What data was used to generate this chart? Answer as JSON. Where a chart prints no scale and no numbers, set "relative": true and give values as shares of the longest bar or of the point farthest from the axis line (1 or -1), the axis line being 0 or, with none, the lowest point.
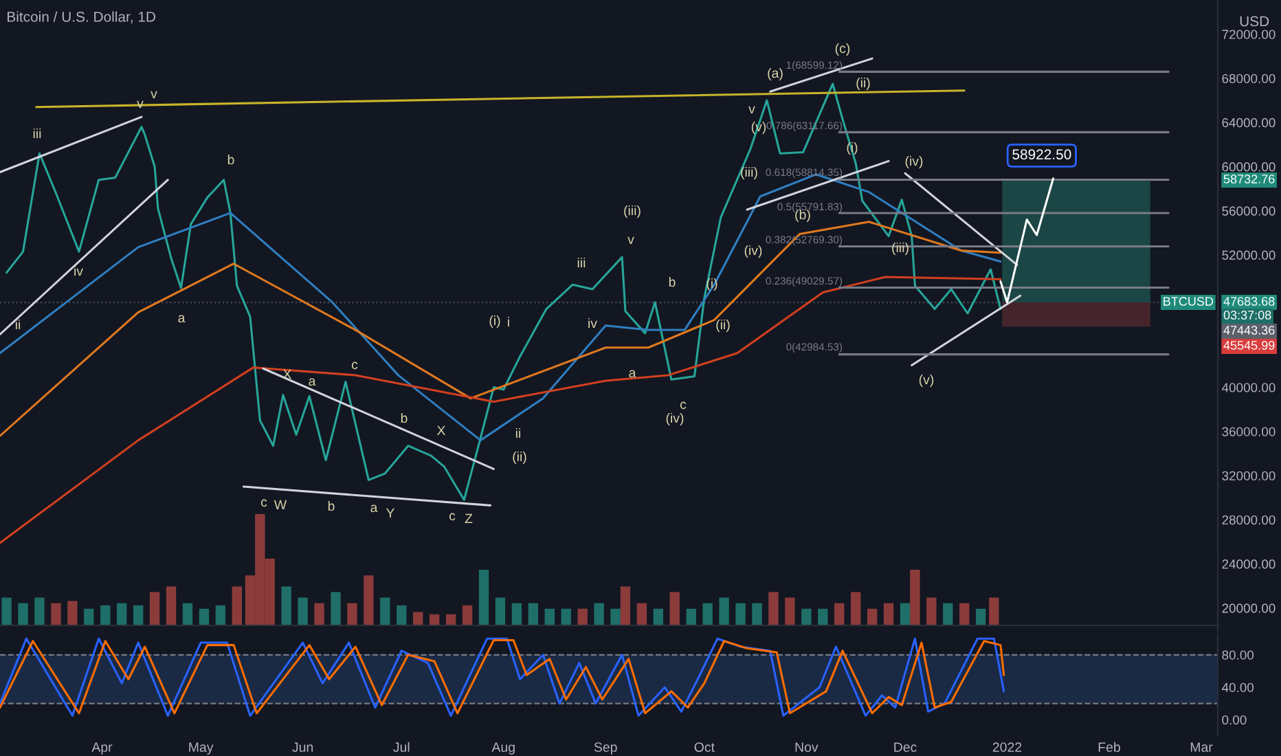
{
  "chart_data": [
    {
      "type": "line",
      "title": "Bitcoin / U.S. Dollar, 1D",
      "ylabel": "USD",
      "xlim": [
        "2021-03-01",
        "2022-03-06"
      ],
      "ylim": [
        17800,
        75100
      ],
      "yticks": [
        {
          "value": 20000,
          "label": "20000.00"
        },
        {
          "value": 24000,
          "label": "24000.00"
        },
        {
          "value": 28000,
          "label": "28000.00"
        },
        {
          "value": 32000,
          "label": "32000.00"
        },
        {
          "value": 36000,
          "label": "36000.00"
        },
        {
          "value": 40000,
          "label": "40000.00"
        },
        {
          "value": 52000,
          "label": "52000.00"
        },
        {
          "value": 56000,
          "label": "56000.00"
        },
        {
          "value": 60000,
          "label": "60000.00"
        },
        {
          "value": 64000,
          "label": "64000.00"
        },
        {
          "value": 68000,
          "label": "68000.00"
        },
        {
          "value": 72000,
          "label": "72000.00"
        }
      ],
      "tick_labels": "y",
      "grid": false,
      "legend": false,
      "series": [
        {
          "type": "bar",
          "color": "#1b4645",
          "x": [
            "2022-01-22"
          ],
          "base": [
            47700
          ],
          "values": [
            11000
          ]
        },
        {
          "type": "bar",
          "color": "#45242b",
          "x": [
            "2022-01-22"
          ],
          "base": [
            45500
          ],
          "values": [
            2200
          ]
        },
        {
          "type": "line",
          "color": "#26a69a",
          "x": [
            "2021-03-03",
            "2021-03-08",
            "2021-03-13",
            "2021-03-18",
            "2021-03-25",
            "2021-03-31",
            "2021-04-05",
            "2021-04-13",
            "2021-04-14",
            "2021-04-17",
            "2021-04-18",
            "2021-04-22",
            "2021-04-25",
            "2021-04-28",
            "2021-05-03",
            "2021-05-08",
            "2021-05-10",
            "2021-05-12",
            "2021-05-16",
            "2021-05-19",
            "2021-05-23",
            "2021-05-26",
            "2021-05-30",
            "2021-06-03",
            "2021-06-08",
            "2021-06-14",
            "2021-06-21",
            "2021-06-26",
            "2021-07-03",
            "2021-07-10",
            "2021-07-14",
            "2021-07-20",
            "2021-07-25",
            "2021-07-29",
            "2021-08-01",
            "2021-08-06",
            "2021-08-14",
            "2021-08-22",
            "2021-08-28",
            "2021-09-06",
            "2021-09-07",
            "2021-09-13",
            "2021-09-16",
            "2021-09-21",
            "2021-09-28",
            "2021-10-01",
            "2021-10-06",
            "2021-10-15",
            "2021-10-20",
            "2021-10-24",
            "2021-10-31",
            "2021-11-09",
            "2021-11-12",
            "2021-11-16",
            "2021-11-18",
            "2021-11-26",
            "2021-11-30",
            "2021-12-03",
            "2021-12-04",
            "2021-12-10",
            "2021-12-15",
            "2021-12-20",
            "2021-12-27",
            "2021-12-30"
          ],
          "values": [
            50400,
            52300,
            61200,
            57600,
            52300,
            58800,
            59000,
            63600,
            62900,
            60000,
            56200,
            51700,
            49000,
            54800,
            57200,
            58800,
            55800,
            49200,
            46400,
            37000,
            34700,
            39300,
            35700,
            39200,
            33400,
            40500,
            31600,
            32200,
            34700,
            33800,
            32800,
            29800,
            35400,
            40000,
            39800,
            42800,
            47100,
            49300,
            48900,
            51800,
            46900,
            44900,
            47700,
            40700,
            41000,
            48100,
            55400,
            61600,
            66000,
            61200,
            61300,
            67500,
            64300,
            60300,
            56900,
            53700,
            57000,
            53700,
            49200,
            47100,
            48900,
            46700,
            50700,
            47100
          ]
        },
        {
          "type": "line",
          "color": "#2f7fc1",
          "x": [
            "2021-03-01",
            "2021-04-12",
            "2021-05-10",
            "2021-06-10",
            "2021-06-30",
            "2021-07-25",
            "2021-08-13",
            "2021-09-01",
            "2021-09-14",
            "2021-09-25",
            "2021-10-04",
            "2021-10-18",
            "2021-11-04",
            "2021-11-20",
            "2021-12-18",
            "2021-12-30"
          ],
          "values": [
            43100,
            52700,
            55800,
            47700,
            41100,
            35200,
            39000,
            45600,
            45200,
            45200,
            49300,
            57300,
            59300,
            57700,
            52400,
            51400
          ]
        },
        {
          "type": "line",
          "color": "#e0791f",
          "x": [
            "2021-03-01",
            "2021-04-12",
            "2021-05-11",
            "2021-06-17",
            "2021-07-22",
            "2021-09-01",
            "2021-09-14",
            "2021-10-04",
            "2021-10-30",
            "2021-11-20",
            "2021-12-18",
            "2021-12-30"
          ],
          "values": [
            35600,
            46800,
            51200,
            45200,
            39000,
            43600,
            43600,
            46100,
            53900,
            55000,
            52400,
            52200
          ]
        },
        {
          "type": "line",
          "color": "#d2401f",
          "x": [
            "2021-03-01",
            "2021-04-12",
            "2021-05-17",
            "2021-06-17",
            "2021-07-29",
            "2021-09-01",
            "2021-09-20",
            "2021-10-11",
            "2021-11-06",
            "2021-11-25",
            "2021-12-30"
          ],
          "values": [
            25900,
            35200,
            41800,
            41100,
            38700,
            40600,
            41100,
            43100,
            48600,
            50000,
            49800
          ]
        },
        {
          "type": "line",
          "color": "#c8b52a",
          "x": [
            "2021-03-12",
            "2021-12-19"
          ],
          "values": [
            65400,
            66900
          ]
        },
        {
          "type": "line",
          "color": "#d1d4dc",
          "x": [
            "2021-03-01",
            "2021-04-13"
          ],
          "values": [
            59500,
            64500
          ]
        },
        {
          "type": "line",
          "color": "#d1d4dc",
          "x": [
            "2021-03-01",
            "2021-04-21"
          ],
          "values": [
            44800,
            58800
          ]
        },
        {
          "type": "line",
          "color": "#d1d4dc",
          "x": [
            "2021-05-20",
            "2021-07-29"
          ],
          "values": [
            41700,
            32600
          ]
        },
        {
          "type": "line",
          "color": "#d1d4dc",
          "x": [
            "2021-05-14",
            "2021-07-28"
          ],
          "values": [
            31000,
            29300
          ]
        },
        {
          "type": "line",
          "color": "#d1d4dc",
          "x": [
            "2021-10-21",
            "2021-11-21"
          ],
          "values": [
            66800,
            69800
          ]
        },
        {
          "type": "line",
          "color": "#d1d4dc",
          "x": [
            "2021-10-14",
            "2021-11-26"
          ],
          "values": [
            56100,
            60500
          ]
        },
        {
          "type": "line",
          "color": "#d1d4dc",
          "x": [
            "2021-12-01",
            "2022-01-04"
          ],
          "values": [
            59400,
            51100
          ]
        },
        {
          "type": "line",
          "color": "#d1d4dc",
          "x": [
            "2021-12-03",
            "2022-01-05"
          ],
          "values": [
            42000,
            48300
          ]
        },
        {
          "type": "line",
          "color": "#787b86",
          "x": [
            "2021-11-11",
            "2022-02-19"
          ],
          "values": [
            68599.12,
            68599.12
          ]
        },
        {
          "type": "line",
          "color": "#787b86",
          "x": [
            "2021-11-11",
            "2022-02-19"
          ],
          "values": [
            63117.66,
            63117.66
          ]
        },
        {
          "type": "line",
          "color": "#787b86",
          "x": [
            "2021-11-11",
            "2022-02-19"
          ],
          "values": [
            58814.35,
            58814.35
          ]
        },
        {
          "type": "line",
          "color": "#787b86",
          "x": [
            "2021-11-11",
            "2022-02-19"
          ],
          "values": [
            55791.83,
            55791.83
          ]
        },
        {
          "type": "line",
          "color": "#787b86",
          "x": [
            "2021-11-11",
            "2022-02-19"
          ],
          "values": [
            52769.3,
            52769.3
          ]
        },
        {
          "type": "line",
          "color": "#787b86",
          "x": [
            "2021-11-11",
            "2022-02-19"
          ],
          "values": [
            49029.57,
            49029.57
          ]
        },
        {
          "type": "line",
          "color": "#787b86",
          "x": [
            "2021-11-11",
            "2022-02-19"
          ],
          "values": [
            42984.53,
            42984.53
          ]
        },
        {
          "type": "line",
          "color": "#ffffff",
          "x": [
            "2021-12-30",
            "2022-01-01",
            "2022-01-07",
            "2022-01-10",
            "2022-01-15"
          ],
          "values": [
            49600,
            47700,
            55200,
            53800,
            58922.5
          ]
        }
      ],
      "ref_lines": [
        {
          "axis": "y",
          "value": 47683.68,
          "color": "#4a4e5a",
          "line_style": "dotted"
        }
      ],
      "annotations": [
        "iii",
        "v",
        "v",
        "iv",
        "ii",
        "b",
        "a",
        "c",
        "W",
        "X",
        "a",
        "c",
        "b",
        "a",
        "Y",
        "b",
        "X",
        "c",
        "Z",
        "(i)",
        "i",
        "ii",
        "(ii)",
        "(iii)",
        "iii",
        "iv",
        "v",
        "a",
        "b",
        "c",
        "(iv)",
        "(i)",
        "(ii)",
        "(iv)",
        "(iii)",
        "(v)",
        "v",
        "(a)",
        "(c)",
        "(b)",
        "(ii)",
        "(i)",
        "(iv)",
        "(iii)",
        "(v)",
        "1(68599.12)",
        "0.786(63117.66)",
        "0.618(58814.35)",
        "0.5(55791.83)",
        "0.382(52769.30)",
        "0.236(49029.57)",
        "0(42984.53)",
        {
          "text": "58922.50",
          "x": "2022-01-15",
          "y": 58922.5
        },
        "58732.76",
        "BTCUSD",
        "47683.68",
        "03:37:08",
        "47443.36",
        "45545.99"
      ]
    },
    {
      "type": "bar",
      "relative": true,
      "tick_labels": false,
      "xlim": [
        "2021-03-01",
        "2022-03-06"
      ],
      "x": [
        "2021-03-03",
        "2021-03-08",
        "2021-03-13",
        "2021-03-18",
        "2021-03-23",
        "2021-03-28",
        "2021-04-02",
        "2021-04-07",
        "2021-04-12",
        "2021-04-17",
        "2021-04-22",
        "2021-04-27",
        "2021-05-02",
        "2021-05-07",
        "2021-05-12",
        "2021-05-16",
        "2021-05-19",
        "2021-05-22",
        "2021-05-27",
        "2021-06-01",
        "2021-06-06",
        "2021-06-11",
        "2021-06-16",
        "2021-06-21",
        "2021-06-26",
        "2021-07-01",
        "2021-07-06",
        "2021-07-11",
        "2021-07-16",
        "2021-07-21",
        "2021-07-26",
        "2021-07-31",
        "2021-08-05",
        "2021-08-10",
        "2021-08-15",
        "2021-08-20",
        "2021-08-25",
        "2021-08-30",
        "2021-09-04",
        "2021-09-07",
        "2021-09-12",
        "2021-09-17",
        "2021-09-22",
        "2021-09-27",
        "2021-10-02",
        "2021-10-07",
        "2021-10-12",
        "2021-10-17",
        "2021-10-22",
        "2021-10-27",
        "2021-11-01",
        "2021-11-06",
        "2021-11-11",
        "2021-11-16",
        "2021-11-21",
        "2021-11-26",
        "2021-12-01",
        "2021-12-04",
        "2021-12-09",
        "2021-12-14",
        "2021-12-19",
        "2021-12-24",
        "2021-12-28"
      ],
      "values": [
        0.25,
        0.2,
        0.25,
        0.2,
        0.22,
        0.15,
        0.18,
        0.2,
        0.18,
        0.3,
        0.35,
        0.2,
        0.15,
        0.18,
        0.35,
        0.45,
        1.0,
        0.6,
        0.35,
        0.25,
        0.2,
        0.3,
        0.2,
        0.45,
        0.25,
        0.18,
        0.12,
        0.1,
        0.1,
        0.18,
        0.5,
        0.25,
        0.2,
        0.2,
        0.15,
        0.15,
        0.15,
        0.2,
        0.15,
        0.35,
        0.2,
        0.15,
        0.3,
        0.15,
        0.2,
        0.25,
        0.2,
        0.2,
        0.3,
        0.25,
        0.15,
        0.15,
        0.2,
        0.3,
        0.15,
        0.2,
        0.2,
        0.5,
        0.25,
        0.2,
        0.2,
        0.15,
        0.25
      ],
      "colors": [
        "#1f6f68",
        "#1f6f68",
        "#1f6f68",
        "#8c3b3b",
        "#8c3b3b",
        "#1f6f68",
        "#1f6f68",
        "#1f6f68",
        "#1f6f68",
        "#8c3b3b",
        "#8c3b3b",
        "#1f6f68",
        "#1f6f68",
        "#1f6f68",
        "#8c3b3b",
        "#8c3b3b",
        "#8c3b3b",
        "#8c3b3b",
        "#1f6f68",
        "#1f6f68",
        "#8c3b3b",
        "#1f6f68",
        "#8c3b3b",
        "#8c3b3b",
        "#1f6f68",
        "#1f6f68",
        "#8c3b3b",
        "#8c3b3b",
        "#8c3b3b",
        "#8c3b3b",
        "#1f6f68",
        "#1f6f68",
        "#1f6f68",
        "#1f6f68",
        "#1f6f68",
        "#1f6f68",
        "#8c3b3b",
        "#1f6f68",
        "#1f6f68",
        "#8c3b3b",
        "#8c3b3b",
        "#1f6f68",
        "#8c3b3b",
        "#1f6f68",
        "#1f6f68",
        "#1f6f68",
        "#1f6f68",
        "#1f6f68",
        "#8c3b3b",
        "#8c3b3b",
        "#1f6f68",
        "#1f6f68",
        "#8c3b3b",
        "#8c3b3b",
        "#8c3b3b",
        "#8c3b3b",
        "#1f6f68",
        "#8c3b3b",
        "#8c3b3b",
        "#1f6f68",
        "#8c3b3b",
        "#1f6f68",
        "#8c3b3b"
      ]
    },
    {
      "type": "line",
      "xlim": [
        "2021-03-01",
        "2022-03-06"
      ],
      "ylim": [
        -19.3,
        104.4
      ],
      "xticks": [
        {
          "value": "2021-04-01",
          "label": "Apr"
        },
        {
          "value": "2021-05-01",
          "label": "May"
        },
        {
          "value": "2021-06-01",
          "label": "Jun"
        },
        {
          "value": "2021-07-01",
          "label": "Jul"
        },
        {
          "value": "2021-08-01",
          "label": "Aug"
        },
        {
          "value": "2021-09-01",
          "label": "Sep"
        },
        {
          "value": "2021-10-01",
          "label": "Oct"
        },
        {
          "value": "2021-11-01",
          "label": "Nov"
        },
        {
          "value": "2021-12-01",
          "label": "Dec"
        },
        {
          "value": "2022-01-01",
          "label": "2022"
        },
        {
          "value": "2022-02-01",
          "label": "Feb"
        },
        {
          "value": "2022-03-01",
          "label": "Mar"
        }
      ],
      "yticks": [
        {
          "value": 0,
          "label": "0.00"
        },
        {
          "value": 40,
          "label": "40.00"
        },
        {
          "value": 80,
          "label": "80.00"
        }
      ],
      "grid": false,
      "legend": false,
      "series": [
        {
          "color": "#2962ff",
          "x": [
            "2021-03-01",
            "2021-03-09",
            "2021-03-23",
            "2021-03-31",
            "2021-04-07",
            "2021-04-12",
            "2021-04-21",
            "2021-05-01",
            "2021-05-09",
            "2021-05-16",
            "2021-06-01",
            "2021-06-07",
            "2021-06-15",
            "2021-06-23",
            "2021-07-01",
            "2021-07-09",
            "2021-07-16",
            "2021-07-27",
            "2021-08-02",
            "2021-08-06",
            "2021-08-13",
            "2021-08-18",
            "2021-08-24",
            "2021-08-29",
            "2021-09-06",
            "2021-09-11",
            "2021-09-19",
            "2021-09-24",
            "2021-09-29",
            "2021-10-05",
            "2021-10-12",
            "2021-10-21",
            "2021-10-25",
            "2021-11-05",
            "2021-11-10",
            "2021-11-19",
            "2021-11-24",
            "2021-11-28",
            "2021-12-04",
            "2021-12-08",
            "2021-12-13",
            "2021-12-23",
            "2021-12-28",
            "2021-12-31"
          ],
          "values": [
            20,
            100,
            5,
            100,
            45,
            95,
            5,
            95,
            95,
            5,
            95,
            45,
            95,
            15,
            85,
            70,
            5,
            100,
            100,
            50,
            80,
            20,
            70,
            20,
            80,
            5,
            40,
            10,
            50,
            100,
            90,
            85,
            5,
            40,
            90,
            5,
            30,
            15,
            100,
            10,
            20,
            100,
            100,
            35
          ]
        },
        {
          "color": "#ff6d00",
          "x": [
            "2021-03-01",
            "2021-03-11",
            "2021-03-25",
            "2021-04-02",
            "2021-04-09",
            "2021-04-14",
            "2021-04-23",
            "2021-05-03",
            "2021-05-11",
            "2021-05-18",
            "2021-06-03",
            "2021-06-09",
            "2021-06-17",
            "2021-06-25",
            "2021-07-03",
            "2021-07-11",
            "2021-07-18",
            "2021-07-29",
            "2021-08-04",
            "2021-08-08",
            "2021-08-15",
            "2021-08-20",
            "2021-08-26",
            "2021-08-31",
            "2021-09-08",
            "2021-09-13",
            "2021-09-21",
            "2021-09-26",
            "2021-10-01",
            "2021-10-07",
            "2021-10-14",
            "2021-10-23",
            "2021-10-27",
            "2021-11-07",
            "2021-11-12",
            "2021-11-21",
            "2021-11-26",
            "2021-11-30",
            "2021-12-06",
            "2021-12-10",
            "2021-12-15",
            "2021-12-25",
            "2021-12-30",
            "2021-12-31"
          ],
          "values": [
            15,
            97,
            8,
            97,
            50,
            90,
            8,
            92,
            92,
            8,
            92,
            50,
            90,
            18,
            80,
            72,
            8,
            98,
            98,
            55,
            75,
            25,
            65,
            25,
            75,
            8,
            35,
            15,
            45,
            97,
            88,
            83,
            8,
            35,
            85,
            8,
            28,
            18,
            95,
            15,
            22,
            97,
            92,
            55
          ]
        }
      ],
      "ref_lines": [
        {
          "axis": "y",
          "value": 80,
          "color": "#787b86",
          "line_style": "dashed"
        },
        {
          "axis": "y",
          "value": 20,
          "color": "#787b86",
          "line_style": "dashed"
        }
      ],
      "bands": [
        {
          "axis": "y",
          "from": 20,
          "to": 80,
          "color": "#1a2a45"
        }
      ]
    }
  ]
}
